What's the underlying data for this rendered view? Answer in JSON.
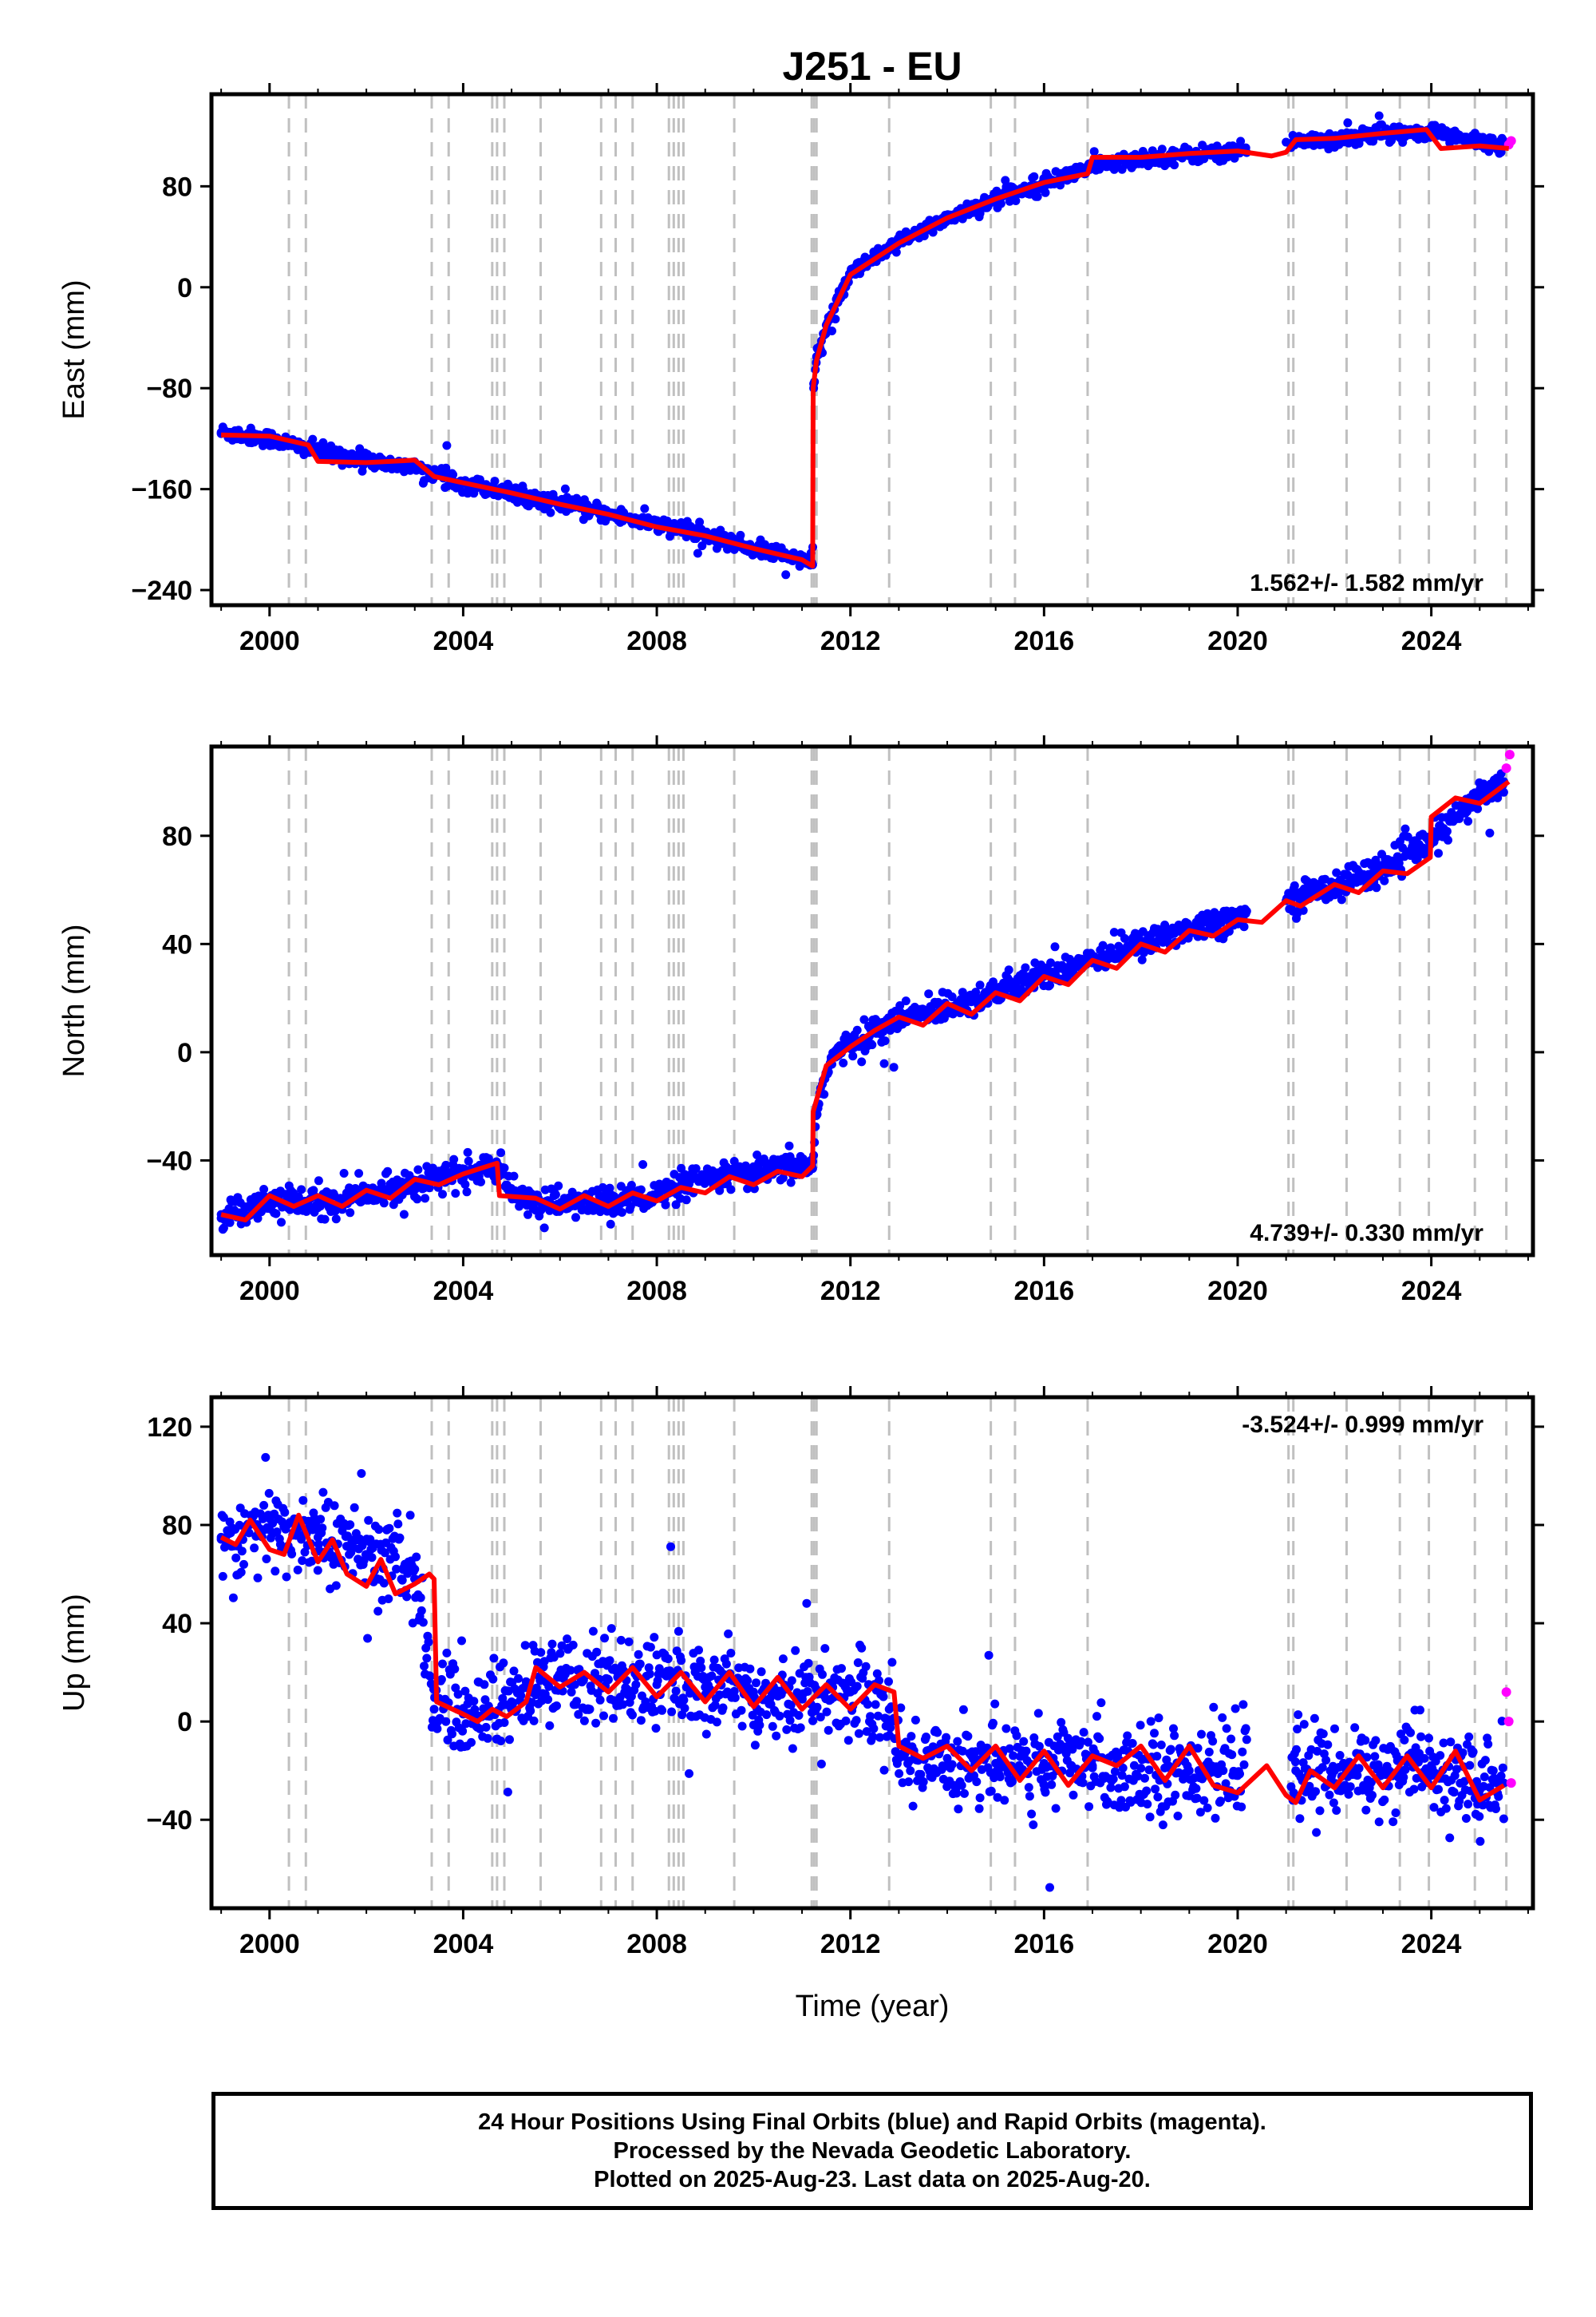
{
  "figure": {
    "title": "J251 - EU",
    "x_axis_label": "Time (year)",
    "footer": [
      "24 Hour Positions Using Final Orbits (blue) and Rapid Orbits (magenta).",
      "Processed by the Nevada Geodetic Laboratory.",
      "Plotted on 2025-Aug-23. Last data on 2025-Aug-20."
    ]
  },
  "colors": {
    "final_orbits": "#0000ff",
    "rapid_orbits": "#ff00ff",
    "model": "#ff0000",
    "event_lines": "#c0c0c0"
  },
  "chart_data": [
    {
      "type": "scatter",
      "component": "east",
      "ylabel": "East (mm)",
      "xlim": [
        1998.8,
        2026.1
      ],
      "ylim": [
        -252,
        153
      ],
      "xticks": [
        "2000",
        "2004",
        "2008",
        "2012",
        "2016",
        "2020",
        "2024"
      ],
      "yticks": [
        "80",
        "0",
        "−80",
        "−160",
        "−240"
      ],
      "rate": "1.562+/- 1.582 mm/yr",
      "rate_position": "bottom-right",
      "series": [
        {
          "name": "Final Orbits",
          "style": "blue dots",
          "x": [
            1999.0,
            2000.0,
            2001.0,
            2002.0,
            2003.0,
            2004.0,
            2005.0,
            2006.0,
            2007.0,
            2008.0,
            2009.0,
            2010.0,
            2011.0,
            2011.22,
            2011.24,
            2011.3,
            2011.5,
            2012.0,
            2013.0,
            2014.0,
            2015.0,
            2016.0,
            2017.0,
            2018.0,
            2019.0,
            2020.0,
            2021.0,
            2022.0,
            2023.0,
            2024.0,
            2025.0,
            2025.5
          ],
          "y": [
            -115,
            -120,
            -130,
            -137,
            -143,
            -155,
            -163,
            -172,
            -180,
            -188,
            -197,
            -207,
            -215,
            -220,
            -80,
            -55,
            -30,
            10,
            35,
            55,
            70,
            83,
            95,
            102,
            105,
            108,
            115,
            118,
            122,
            123,
            115,
            112
          ]
        },
        {
          "name": "Rapid Orbits",
          "style": "magenta dots",
          "x": [
            2025.6,
            2025.65
          ],
          "y": [
            113,
            116
          ]
        },
        {
          "name": "Model",
          "style": "red line",
          "x": [
            1999.0,
            2000.0,
            2000.8,
            2001.0,
            2002.0,
            2003.0,
            2003.4,
            2004.0,
            2005.0,
            2006.0,
            2007.0,
            2008.0,
            2009.0,
            2010.0,
            2011.0,
            2011.22,
            2011.23,
            2011.3,
            2011.5,
            2012.0,
            2013.0,
            2014.0,
            2015.0,
            2016.0,
            2016.9,
            2017.0,
            2018.0,
            2019.0,
            2020.0,
            2020.7,
            2021.0,
            2021.2,
            2022.0,
            2023.0,
            2023.9,
            2024.2,
            2025.0,
            2025.6
          ],
          "y": [
            -117,
            -118,
            -125,
            -138,
            -139,
            -137,
            -150,
            -155,
            -163,
            -172,
            -180,
            -190,
            -197,
            -207,
            -216,
            -221,
            -80,
            -58,
            -30,
            10,
            35,
            55,
            70,
            83,
            90,
            103,
            103,
            106,
            108,
            104,
            107,
            117,
            118,
            122,
            125,
            110,
            112,
            110
          ]
        }
      ]
    },
    {
      "type": "scatter",
      "component": "north",
      "ylabel": "North (mm)",
      "xlim": [
        1998.8,
        2026.1
      ],
      "ylim": [
        -75,
        113
      ],
      "xticks": [
        "2000",
        "2004",
        "2008",
        "2012",
        "2016",
        "2020",
        "2024"
      ],
      "yticks": [
        "80",
        "40",
        "0",
        "−40"
      ],
      "rate": "4.739+/- 0.330 mm/yr",
      "rate_position": "bottom-right",
      "series": [
        {
          "name": "Final Orbits",
          "style": "blue dots",
          "x": [
            1999.0,
            2000.0,
            2001.0,
            2002.0,
            2003.0,
            2004.0,
            2004.7,
            2005.0,
            2006.0,
            2007.0,
            2008.0,
            2009.0,
            2010.0,
            2011.0,
            2011.22,
            2011.3,
            2011.6,
            2012.0,
            2013.0,
            2014.0,
            2015.0,
            2016.0,
            2017.0,
            2018.0,
            2019.0,
            2020.0,
            2021.0,
            2022.0,
            2023.0,
            2024.0,
            2025.0,
            2025.5
          ],
          "y": [
            -60,
            -55,
            -56,
            -53,
            -48,
            -45,
            -42,
            -53,
            -56,
            -55,
            -53,
            -47,
            -45,
            -42,
            -43,
            -20,
            -3,
            3,
            12,
            17,
            22,
            28,
            35,
            40,
            46,
            50,
            56,
            62,
            68,
            78,
            95,
            100
          ]
        },
        {
          "name": "Rapid Orbits",
          "style": "magenta dots",
          "x": [
            2025.55,
            2025.62
          ],
          "y": [
            105,
            110
          ]
        },
        {
          "name": "Model",
          "style": "red line",
          "x": [
            1999.0,
            1999.5,
            2000.0,
            2000.5,
            2001.0,
            2001.5,
            2002.0,
            2002.5,
            2003.0,
            2003.5,
            2004.0,
            2004.7,
            2004.75,
            2005.5,
            2006.0,
            2006.5,
            2007.0,
            2007.5,
            2008.0,
            2008.5,
            2009.0,
            2009.5,
            2010.0,
            2010.5,
            2011.0,
            2011.22,
            2011.23,
            2011.5,
            2012.0,
            2012.5,
            2013.0,
            2013.5,
            2014.0,
            2014.5,
            2015.0,
            2015.5,
            2016.0,
            2016.5,
            2017.0,
            2017.5,
            2018.0,
            2018.5,
            2019.0,
            2019.5,
            2020.0,
            2020.5,
            2021.0,
            2021.3,
            2022.0,
            2022.5,
            2023.0,
            2023.5,
            2023.98,
            2024.0,
            2024.5,
            2025.0,
            2025.6
          ],
          "y": [
            -60,
            -62,
            -53,
            -57,
            -53,
            -57,
            -51,
            -54,
            -47,
            -49,
            -45,
            -41,
            -53,
            -54,
            -58,
            -53,
            -57,
            -52,
            -55,
            -50,
            -52,
            -46,
            -49,
            -44,
            -46,
            -42,
            -22,
            -5,
            2,
            8,
            13,
            10,
            18,
            14,
            22,
            19,
            28,
            25,
            34,
            31,
            40,
            37,
            45,
            43,
            49,
            48,
            56,
            54,
            62,
            59,
            67,
            66,
            72,
            87,
            94,
            92,
            100
          ]
        }
      ]
    },
    {
      "type": "scatter",
      "component": "up",
      "ylabel": "Up (mm)",
      "xlabel": "Time (year)",
      "xlim": [
        1998.8,
        2026.1
      ],
      "ylim": [
        -76,
        132
      ],
      "xticks": [
        "2000",
        "2004",
        "2008",
        "2012",
        "2016",
        "2020",
        "2024"
      ],
      "yticks": [
        "120",
        "80",
        "40",
        "0",
        "−40"
      ],
      "rate": "-3.524+/- 0.999 mm/yr",
      "rate_position": "top-right",
      "series": [
        {
          "name": "Final Orbits",
          "style": "blue dots",
          "x": [
            1999.0,
            2000.0,
            2001.0,
            2002.0,
            2003.0,
            2003.4,
            2004.0,
            2005.0,
            2006.0,
            2007.0,
            2008.0,
            2009.0,
            2010.0,
            2011.0,
            2012.0,
            2012.8,
            2013.0,
            2014.0,
            2015.0,
            2016.0,
            2017.0,
            2018.0,
            2019.0,
            2020.0,
            2021.2,
            2022.0,
            2023.0,
            2024.0,
            2025.0,
            2025.5
          ],
          "y": [
            75,
            78,
            75,
            68,
            62,
            5,
            3,
            8,
            18,
            17,
            15,
            14,
            12,
            10,
            12,
            5,
            -15,
            -15,
            -17,
            -17,
            -18,
            -19,
            -20,
            -22,
            -20,
            -20,
            -20,
            -18,
            -28,
            -25
          ]
        },
        {
          "name": "Rapid Orbits",
          "style": "magenta dots",
          "x": [
            2025.55,
            2025.6,
            2025.65
          ],
          "y": [
            12,
            0,
            -25
          ]
        },
        {
          "name": "Model",
          "style": "red line",
          "x": [
            1999.0,
            1999.3,
            1999.6,
            2000.0,
            2000.3,
            2000.6,
            2001.0,
            2001.3,
            2001.6,
            2002.0,
            2002.3,
            2002.6,
            2003.0,
            2003.3,
            2003.4,
            2003.45,
            2004.0,
            2004.3,
            2004.6,
            2004.9,
            2005.3,
            2005.5,
            2006.0,
            2006.5,
            2007.0,
            2007.5,
            2008.0,
            2008.5,
            2009.0,
            2009.5,
            2010.0,
            2010.5,
            2011.0,
            2011.5,
            2012.0,
            2012.5,
            2012.9,
            2013.0,
            2013.5,
            2014.0,
            2014.5,
            2015.0,
            2015.5,
            2016.0,
            2016.5,
            2017.0,
            2017.5,
            2018.0,
            2018.5,
            2019.0,
            2019.5,
            2020.0,
            2020.6,
            2021.0,
            2021.2,
            2021.5,
            2022.0,
            2022.5,
            2023.0,
            2023.5,
            2024.0,
            2024.5,
            2025.0,
            2025.5
          ],
          "y": [
            75,
            72,
            82,
            70,
            68,
            84,
            65,
            74,
            60,
            55,
            66,
            52,
            56,
            60,
            58,
            8,
            3,
            0,
            5,
            2,
            8,
            22,
            14,
            20,
            12,
            22,
            10,
            20,
            8,
            20,
            6,
            18,
            5,
            15,
            5,
            15,
            12,
            -10,
            -15,
            -10,
            -20,
            -10,
            -24,
            -12,
            -26,
            -14,
            -18,
            -10,
            -24,
            -10,
            -26,
            -29,
            -18,
            -30,
            -33,
            -20,
            -27,
            -14,
            -27,
            -14,
            -27,
            -12,
            -32,
            -26
          ]
        }
      ]
    }
  ]
}
